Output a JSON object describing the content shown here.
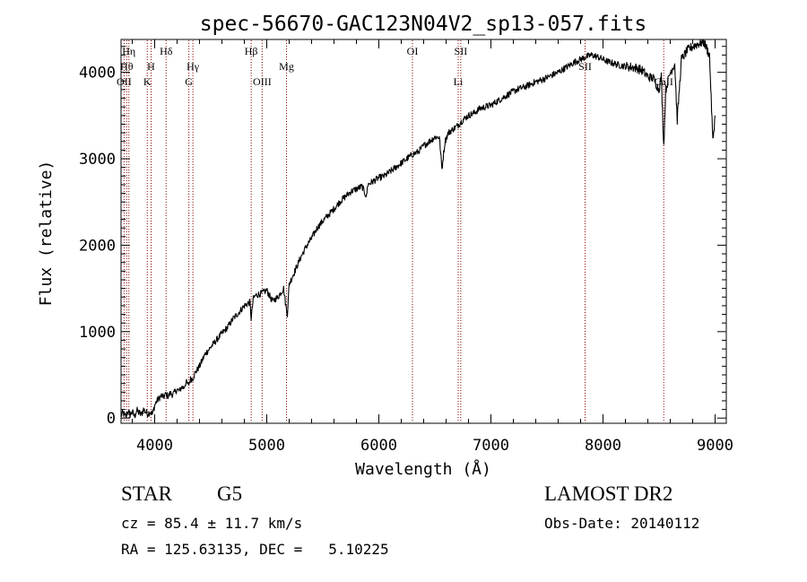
{
  "chart_data": {
    "type": "line",
    "title": "spec-56670-GAC123N04V2_sp13-057.fits",
    "xlabel": "Wavelength (Å)",
    "ylabel": "Flux (relative)",
    "xlim": [
      3700,
      9100
    ],
    "ylim": [
      -60,
      4380
    ],
    "xticks": [
      4000,
      5000,
      6000,
      7000,
      8000,
      9000
    ],
    "yticks": [
      0,
      1000,
      2000,
      3000,
      4000
    ],
    "grid": false,
    "line_color": "#000000",
    "marker_color": "#8b0000",
    "series": [
      {
        "x": [
          3700,
          3720,
          3740,
          3760,
          3780,
          3800,
          3820,
          3840,
          3860,
          3880,
          3900,
          3920,
          3940,
          3960,
          3980,
          4000,
          4020,
          4040,
          4060,
          4080,
          4100,
          4120,
          4140,
          4160,
          4180,
          4200,
          4220,
          4240,
          4260,
          4280,
          4300,
          4320,
          4340,
          4360,
          4380,
          4400,
          4450,
          4500,
          4550,
          4600,
          4650,
          4700,
          4750,
          4800,
          4850,
          4861,
          4880,
          4900,
          4950,
          5000,
          5050,
          5100,
          5150,
          5170,
          5184,
          5200,
          5250,
          5300,
          5350,
          5400,
          5450,
          5500,
          5550,
          5600,
          5650,
          5700,
          5750,
          5800,
          5850,
          5890,
          5900,
          5950,
          6000,
          6050,
          6100,
          6150,
          6200,
          6250,
          6300,
          6350,
          6400,
          6450,
          6500,
          6540,
          6563,
          6590,
          6620,
          6650,
          6700,
          6750,
          6800,
          6850,
          6900,
          6950,
          7000,
          7050,
          7100,
          7150,
          7200,
          7250,
          7300,
          7350,
          7400,
          7450,
          7500,
          7550,
          7600,
          7650,
          7700,
          7750,
          7800,
          7850,
          7900,
          7950,
          8000,
          8050,
          8100,
          8150,
          8200,
          8250,
          8300,
          8350,
          8400,
          8450,
          8498,
          8520,
          8542,
          8560,
          8600,
          8640,
          8662,
          8700,
          8750,
          8800,
          8850,
          8900,
          8950,
          8980,
          9000
        ],
        "y": [
          30,
          60,
          10,
          80,
          40,
          70,
          20,
          90,
          60,
          40,
          100,
          70,
          50,
          80,
          40,
          150,
          200,
          230,
          260,
          240,
          280,
          250,
          290,
          270,
          300,
          330,
          310,
          360,
          350,
          420,
          380,
          450,
          460,
          520,
          560,
          600,
          740,
          820,
          900,
          980,
          1050,
          1150,
          1220,
          1300,
          1340,
          1150,
          1380,
          1420,
          1440,
          1480,
          1350,
          1400,
          1500,
          1300,
          1200,
          1550,
          1700,
          1850,
          1980,
          2080,
          2200,
          2280,
          2350,
          2420,
          2500,
          2560,
          2620,
          2650,
          2680,
          2560,
          2700,
          2740,
          2780,
          2800,
          2850,
          2900,
          2950,
          3000,
          3050,
          3080,
          3150,
          3200,
          3250,
          3250,
          2880,
          3200,
          3300,
          3330,
          3380,
          3450,
          3500,
          3530,
          3580,
          3600,
          3620,
          3660,
          3700,
          3740,
          3780,
          3810,
          3830,
          3860,
          3890,
          3910,
          3940,
          3970,
          4000,
          4040,
          4080,
          4120,
          4150,
          4180,
          4200,
          4180,
          4150,
          4120,
          4100,
          4080,
          4070,
          4060,
          4050,
          4020,
          3950,
          3930,
          3800,
          3950,
          3150,
          3800,
          4000,
          4100,
          3450,
          4150,
          4250,
          4300,
          4330,
          4350,
          4200,
          3200,
          3500
        ]
      }
    ],
    "line_markers": [
      {
        "x": 3727,
        "label": "OII",
        "row": 3
      },
      {
        "x": 3750,
        "label": "Hθ",
        "row": 2
      },
      {
        "x": 3770,
        "label": "Hη",
        "row": 1
      },
      {
        "x": 3934,
        "label": "K",
        "row": 3
      },
      {
        "x": 3968,
        "label": "H",
        "row": 2
      },
      {
        "x": 4102,
        "label": "Hδ",
        "row": 1
      },
      {
        "x": 4305,
        "label": "G",
        "row": 3
      },
      {
        "x": 4341,
        "label": "Hγ",
        "row": 2
      },
      {
        "x": 4861,
        "label": "Hβ",
        "row": 1
      },
      {
        "x": 4959,
        "label": "OIII",
        "row": 3
      },
      {
        "x": 5176,
        "label": "Mg",
        "row": 2
      },
      {
        "x": 6300,
        "label": "OI",
        "row": 1
      },
      {
        "x": 6708,
        "label": "Li",
        "row": 3
      },
      {
        "x": 6731,
        "label": "SII",
        "row": 1
      },
      {
        "x": 7840,
        "label": "SII",
        "row": 2
      },
      {
        "x": 8542,
        "label": "CaII",
        "row": 3
      }
    ]
  },
  "info": {
    "object_class": "STAR",
    "subclass": "G5",
    "survey": "LAMOST DR2",
    "cz": "cz = 85.4 ± 11.7 km/s",
    "obs_date": "Obs-Date: 20140112",
    "coords": "RA = 125.63135, DEC =   5.10225"
  }
}
